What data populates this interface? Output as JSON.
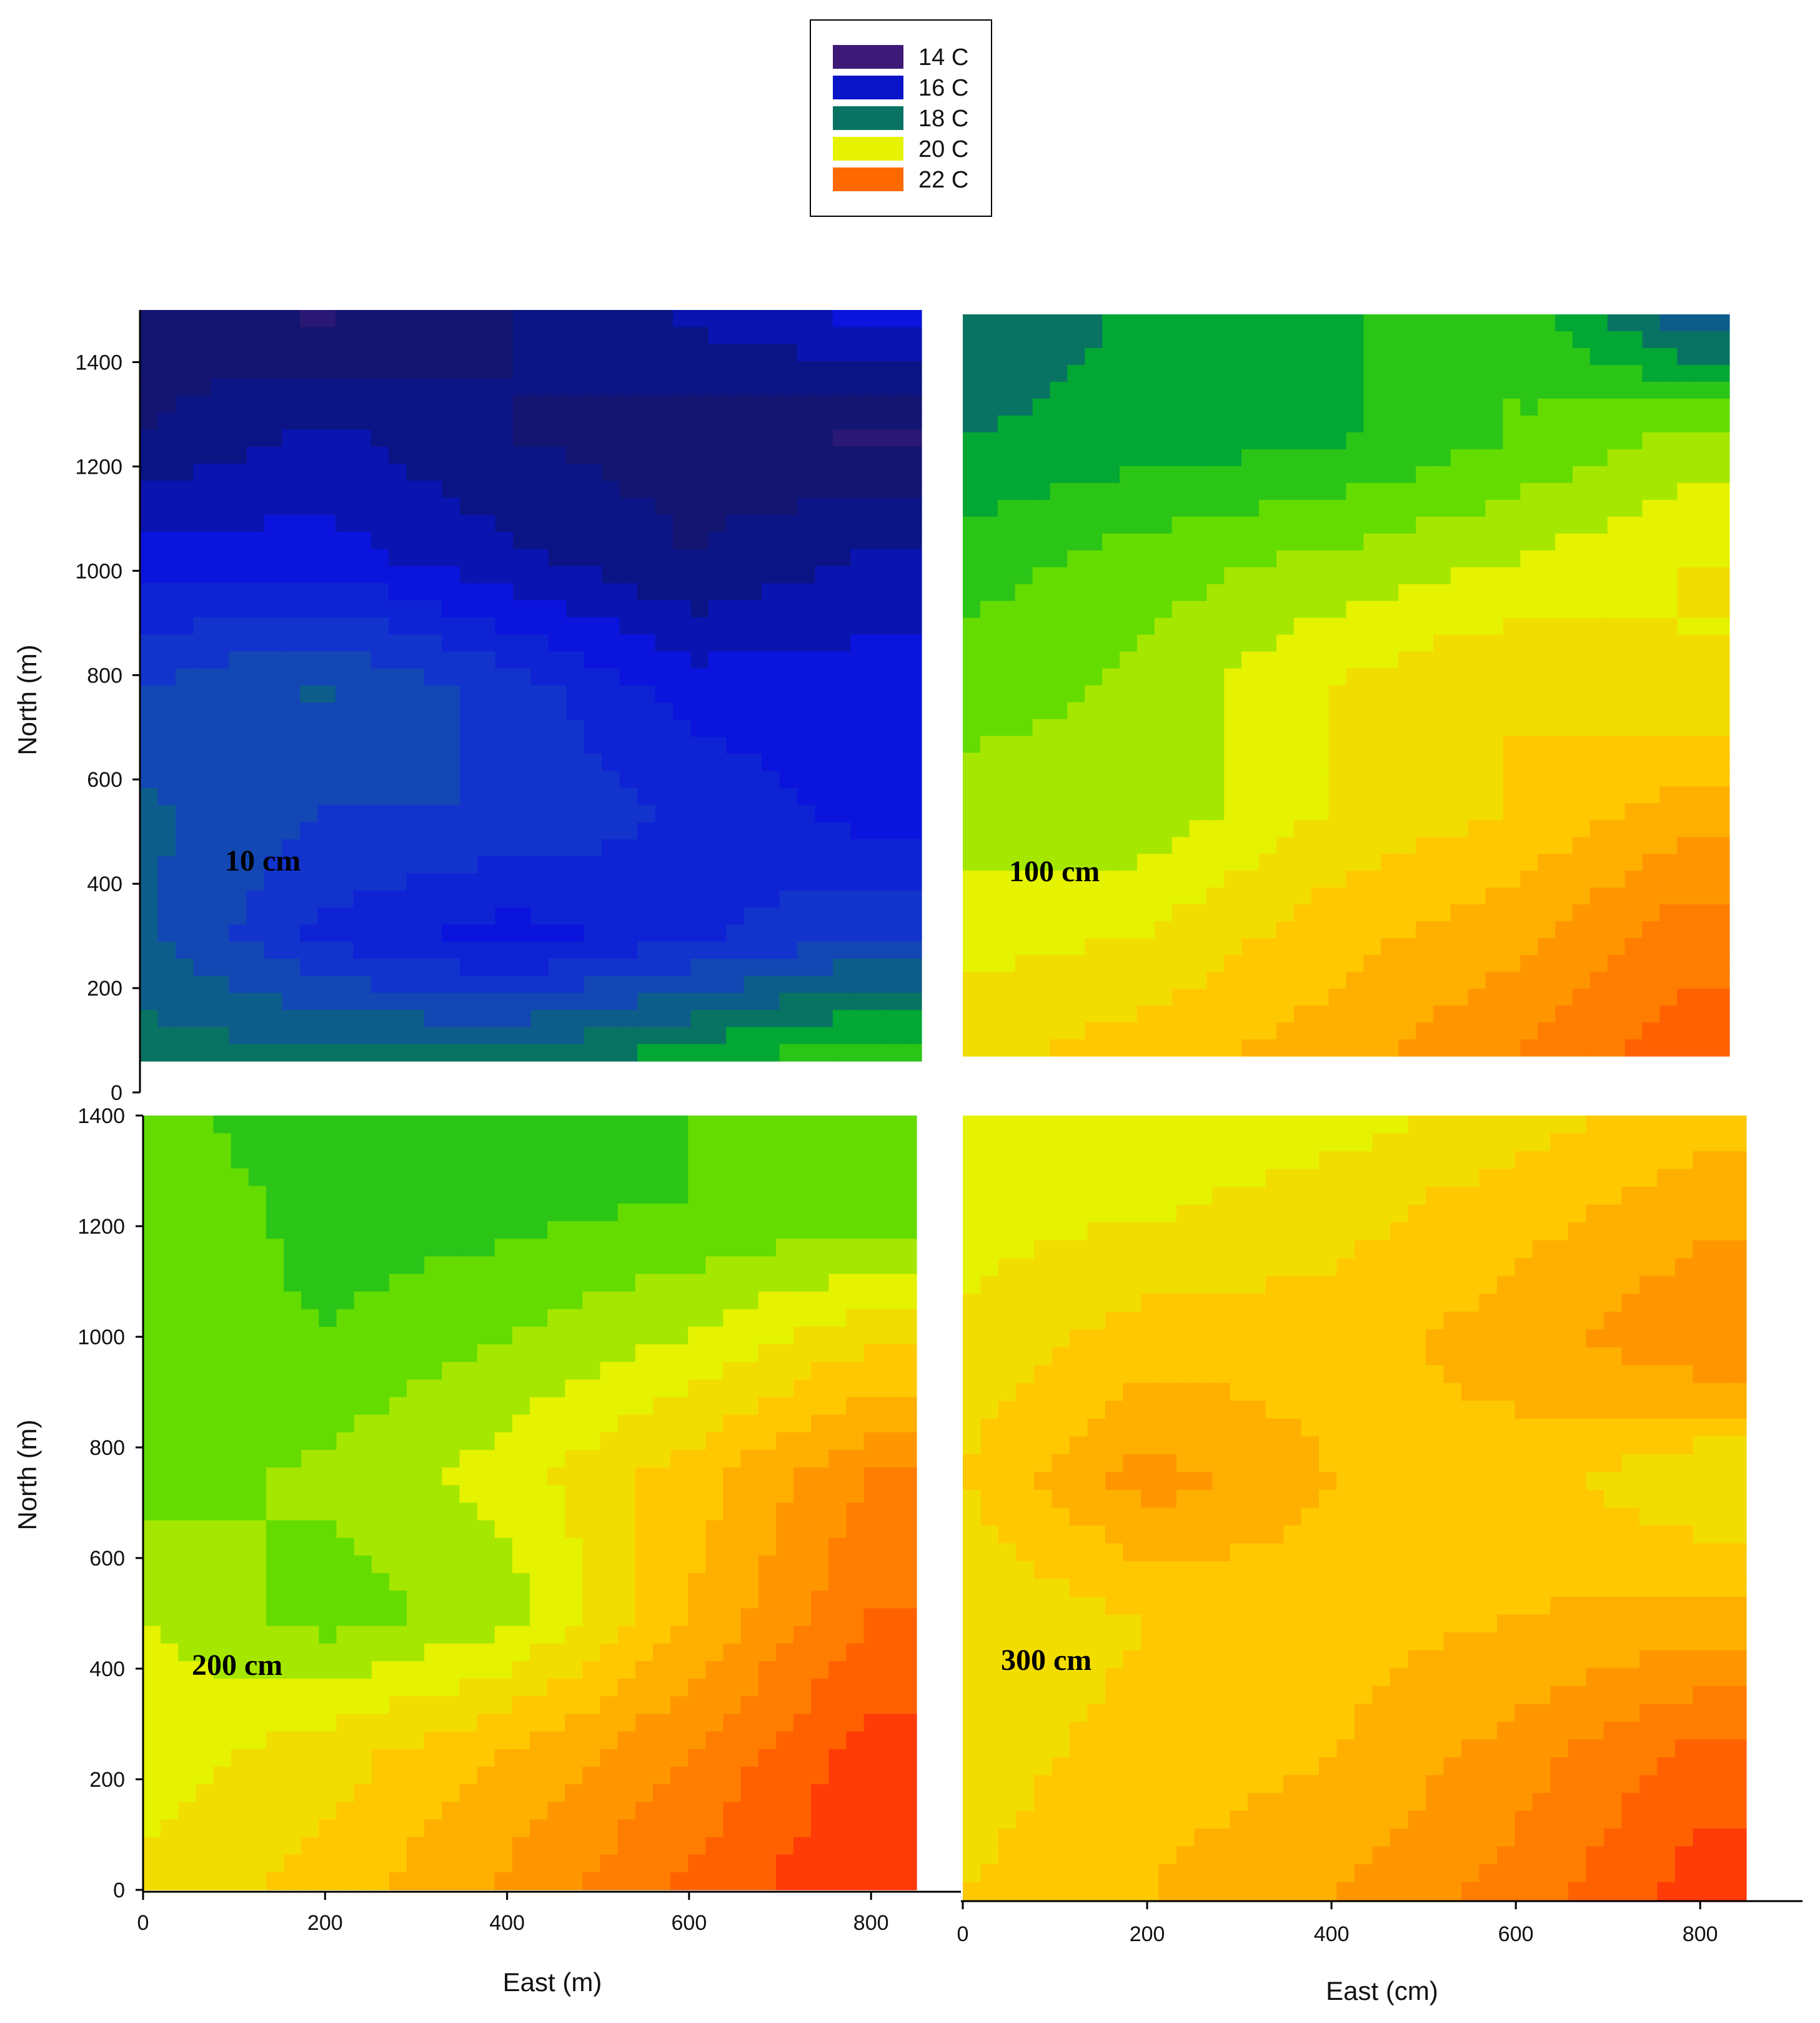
{
  "legend": {
    "entries": [
      {
        "label": "14 C",
        "color": "#3d1a78"
      },
      {
        "label": "16 C",
        "color": "#0a14c8"
      },
      {
        "label": "18 C",
        "color": "#087362"
      },
      {
        "label": "20 C",
        "color": "#e5f200"
      },
      {
        "label": "22 C",
        "color": "#ff6a00"
      }
    ]
  },
  "axes": {
    "left_ylabel_top": "North (m)",
    "left_ylabel_bottom": "North (m)",
    "xlabel_left": "East (m)",
    "xlabel_right": "East (cm)"
  },
  "chart_data": [
    {
      "type": "heatmap",
      "panel_label": "10 cm",
      "xlim": [
        0,
        850
      ],
      "ylim": [
        0,
        1500
      ],
      "y_ticks": [
        0,
        200,
        400,
        600,
        800,
        1000,
        1200,
        1400
      ],
      "levels_c": [
        14,
        16,
        18,
        20,
        22
      ],
      "x": [
        0,
        200,
        400,
        600,
        800
      ],
      "y": [
        0,
        250,
        500,
        750,
        1000,
        1250,
        1500
      ],
      "z": [
        [
          18.0,
          18.0,
          18.0,
          18.5,
          19.0
        ],
        [
          17.5,
          16.5,
          16.0,
          16.5,
          17.0
        ],
        [
          17.5,
          17.0,
          17.0,
          16.5,
          16.0
        ],
        [
          17.0,
          17.5,
          16.8,
          16.0,
          16.0
        ],
        [
          16.0,
          16.0,
          15.5,
          15.0,
          15.5
        ],
        [
          15.0,
          15.5,
          15.0,
          14.8,
          14.5
        ],
        [
          14.8,
          14.5,
          15.0,
          15.5,
          16.0
        ]
      ]
    },
    {
      "type": "heatmap",
      "panel_label": "100 cm",
      "xlim": [
        0,
        850
      ],
      "ylim": [
        0,
        1500
      ],
      "levels_c": [
        14,
        16,
        18,
        20,
        22
      ],
      "x": [
        0,
        200,
        400,
        600,
        800
      ],
      "y": [
        0,
        250,
        500,
        750,
        1000,
        1250,
        1500
      ],
      "z": [
        [
          20.5,
          20.8,
          21.2,
          21.8,
          22.5
        ],
        [
          20.0,
          20.2,
          20.8,
          21.2,
          22.0
        ],
        [
          19.6,
          19.5,
          20.2,
          20.6,
          21.2
        ],
        [
          19.2,
          19.5,
          20.2,
          20.6,
          20.2
        ],
        [
          18.8,
          19.2,
          19.5,
          19.8,
          20.2
        ],
        [
          18.2,
          18.4,
          18.5,
          19.0,
          19.5
        ],
        [
          17.8,
          18.3,
          18.5,
          19.0,
          17.5
        ]
      ]
    },
    {
      "type": "heatmap",
      "panel_label": "200 cm",
      "xlim": [
        0,
        850
      ],
      "ylim": [
        0,
        1400
      ],
      "x_ticks": [
        0,
        200,
        400,
        600,
        800
      ],
      "y_ticks": [
        0,
        200,
        400,
        600,
        800,
        1000,
        1200,
        1400
      ],
      "levels_c": [
        14,
        16,
        18,
        20,
        22
      ],
      "x": [
        0,
        200,
        400,
        600,
        800
      ],
      "y": [
        0,
        250,
        500,
        750,
        1000,
        1250,
        1400
      ],
      "z": [
        [
          20.3,
          20.8,
          21.5,
          22.3,
          23.0
        ],
        [
          20.0,
          20.4,
          21.0,
          21.8,
          22.8
        ],
        [
          19.8,
          19.2,
          19.6,
          21.0,
          22.2
        ],
        [
          19.2,
          19.5,
          20.0,
          20.8,
          21.8
        ],
        [
          19.3,
          19.0,
          19.4,
          19.8,
          20.5
        ],
        [
          19.4,
          18.8,
          18.8,
          19.0,
          19.0
        ],
        [
          19.2,
          18.6,
          18.6,
          19.0,
          19.4
        ]
      ]
    },
    {
      "type": "heatmap",
      "panel_label": "300 cm",
      "xlim": [
        0,
        850
      ],
      "ylim": [
        0,
        1400
      ],
      "x_ticks": [
        0,
        200,
        400,
        600,
        800
      ],
      "levels_c": [
        14,
        16,
        18,
        20,
        22
      ],
      "x": [
        0,
        200,
        400,
        600,
        800
      ],
      "y": [
        0,
        250,
        500,
        750,
        1000,
        1250,
        1400
      ],
      "z": [
        [
          20.6,
          21.0,
          21.4,
          22.0,
          22.8
        ],
        [
          20.4,
          20.8,
          21.0,
          21.6,
          22.4
        ],
        [
          20.2,
          20.6,
          20.8,
          21.0,
          21.2
        ],
        [
          20.6,
          21.6,
          21.0,
          20.8,
          20.2
        ],
        [
          20.3,
          20.8,
          20.8,
          21.2,
          21.8
        ],
        [
          20.0,
          20.1,
          20.4,
          20.8,
          21.2
        ],
        [
          19.8,
          19.8,
          20.0,
          20.4,
          20.8
        ]
      ]
    }
  ]
}
